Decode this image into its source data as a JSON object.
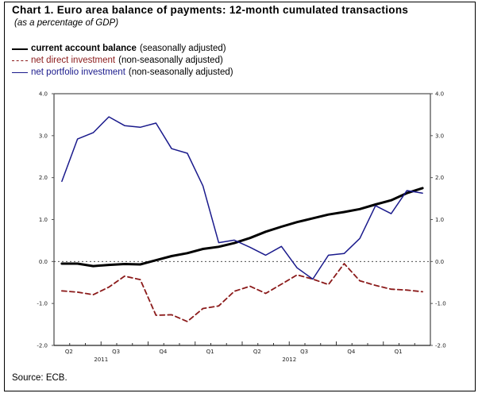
{
  "header": {
    "title": "Chart 1. Euro area balance of payments: 12-month cumulated transactions",
    "subtitle": "(as a percentage of GDP)"
  },
  "legend": [
    {
      "series": "current_account",
      "label": "current account balance",
      "note": "(seasonally adjusted)"
    },
    {
      "series": "net_direct",
      "label": "net direct investment",
      "note": "(non-seasonally adjusted)"
    },
    {
      "series": "net_portfolio",
      "label": "net portfolio investment",
      "note": "(non-seasonally adjusted)"
    }
  ],
  "source": "Source: ECB.",
  "colors": {
    "current_account": "#000000",
    "net_direct": "#8b1a1a",
    "net_portfolio": "#1a1a8c"
  },
  "chart_data": {
    "type": "line",
    "title": "Chart 1. Euro area balance of payments: 12-month cumulated transactions",
    "subtitle": "(as a percentage of GDP)",
    "xlabel": "",
    "ylabel": "",
    "ylim": [
      -2.0,
      4.0
    ],
    "yticks": [
      "4.0",
      "3.0",
      "2.0",
      "1.0",
      "0.0",
      "-1.0",
      "-2.0"
    ],
    "ytick_values": [
      4,
      3,
      2,
      1,
      0,
      -1,
      -2
    ],
    "y_axis_both_sides": true,
    "zero_line": "dotted",
    "grid": false,
    "legend_position": "top-left (above plot)",
    "x_frequency": "monthly",
    "x_start": "April 2011",
    "x_end": "March 2013",
    "n_points": 24,
    "quarter_labels": [
      "Q2",
      "Q3",
      "Q4",
      "Q1",
      "Q2",
      "Q3",
      "Q4",
      "Q1"
    ],
    "year_labels": [
      {
        "label": "2011",
        "under_quarter_index": 0.5
      },
      {
        "label": "2012",
        "under_quarter_index": 4.5
      }
    ],
    "series": [
      {
        "key": "current_account",
        "name": "current account balance (seasonally adjusted)",
        "style": "thick solid",
        "values": [
          -0.05,
          -0.05,
          -0.11,
          -0.08,
          -0.06,
          -0.07,
          0.03,
          0.13,
          0.2,
          0.3,
          0.35,
          0.44,
          0.56,
          0.71,
          0.83,
          0.94,
          1.03,
          1.12,
          1.18,
          1.25,
          1.36,
          1.46,
          1.63,
          1.75
        ]
      },
      {
        "key": "net_direct",
        "name": "net direct investment (non-seasonally adjusted)",
        "style": "dashed",
        "values": [
          -0.7,
          -0.73,
          -0.79,
          -0.61,
          -0.35,
          -0.43,
          -1.28,
          -1.27,
          -1.43,
          -1.12,
          -1.06,
          -0.71,
          -0.59,
          -0.76,
          -0.54,
          -0.32,
          -0.42,
          -0.55,
          -0.05,
          -0.46,
          -0.57,
          -0.66,
          -0.68,
          -0.72
        ]
      },
      {
        "key": "net_portfolio",
        "name": "net portfolio investment (non-seasonally adjusted)",
        "style": "solid",
        "values": [
          1.91,
          2.92,
          3.07,
          3.45,
          3.24,
          3.2,
          3.3,
          2.69,
          2.58,
          1.8,
          0.45,
          0.51,
          0.34,
          0.15,
          0.36,
          -0.15,
          -0.42,
          0.15,
          0.19,
          0.55,
          1.33,
          1.14,
          1.69,
          1.63
        ]
      }
    ]
  }
}
